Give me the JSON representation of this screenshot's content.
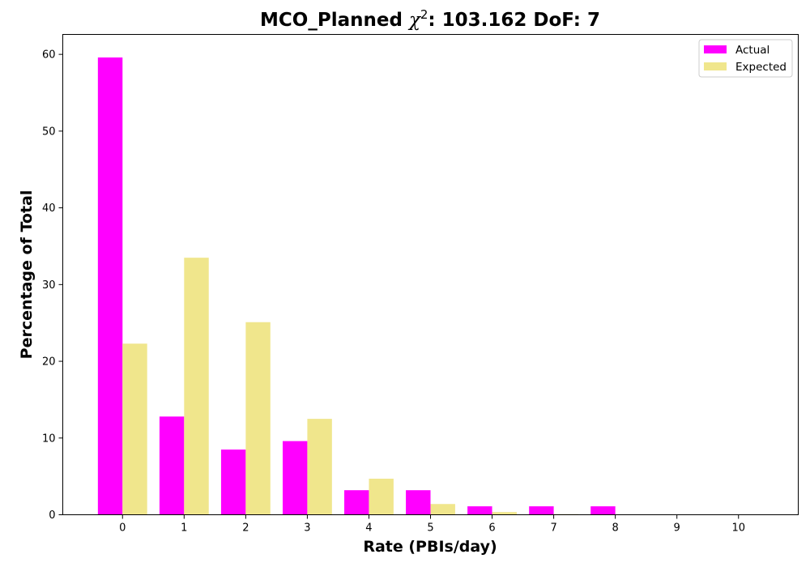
{
  "chart_data": {
    "type": "bar",
    "title_prefix": "MCO_Planned ",
    "title_chi": "χ",
    "title_superscript": "2",
    "title_suffix": ": 103.162 DoF: 7",
    "xlabel": "Rate (PBIs/day)",
    "ylabel": "Percentage of Total",
    "categories": [
      "0",
      "1",
      "2",
      "3",
      "4",
      "5",
      "6",
      "7",
      "8",
      "9",
      "10"
    ],
    "series": [
      {
        "name": "Actual",
        "color": "#ff00ff",
        "values": [
          59.6,
          12.8,
          8.5,
          9.6,
          3.2,
          3.2,
          1.1,
          1.1,
          1.1,
          0,
          0
        ]
      },
      {
        "name": "Expected",
        "color": "#f0e68c",
        "values": [
          22.3,
          33.5,
          25.1,
          12.5,
          4.7,
          1.4,
          0.35,
          0.08,
          0.01,
          0,
          0
        ]
      }
    ],
    "yticks": [
      0,
      10,
      20,
      30,
      40,
      50,
      60
    ],
    "ylim": [
      0,
      62.6
    ],
    "xlim": [
      -0.97,
      10.97
    ],
    "legend_position": "top-right",
    "grid": false
  }
}
